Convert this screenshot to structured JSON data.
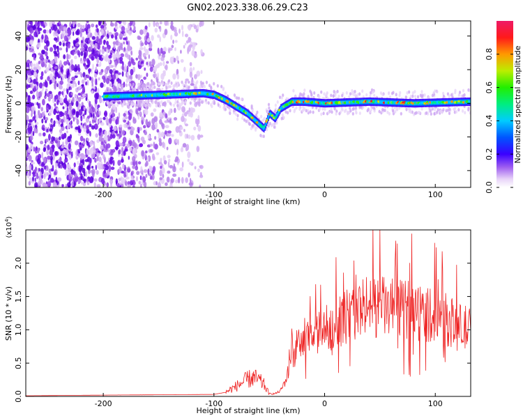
{
  "title": "GN02.2023.338.06.29.C23",
  "chart_data": [
    {
      "type": "heatmap",
      "xlabel": "Height of straight line (km)",
      "ylabel": "Frequency (Hz)",
      "xlim": [
        -270,
        132
      ],
      "ylim": [
        -50,
        49
      ],
      "xticks": [
        -200,
        -100,
        0,
        100
      ],
      "xtick_labels": [
        "-200",
        "-100",
        "0",
        "100"
      ],
      "yticks": [
        -40,
        -20,
        0,
        20,
        40
      ],
      "ytick_labels": [
        "-40",
        "-20",
        "0",
        "20",
        "40"
      ],
      "ridge": {
        "x": [
          -200,
          -150,
          -110,
          -100,
          -90,
          -80,
          -70,
          -60,
          -55,
          -50,
          -45,
          -40,
          -35,
          -30,
          -20,
          0,
          40,
          80,
          132
        ],
        "freq": [
          4,
          5,
          6,
          5,
          2,
          -2,
          -6,
          -12,
          -15,
          -6,
          -9,
          -3,
          -1,
          1,
          1,
          0,
          1,
          0,
          1
        ]
      },
      "colorbar": {
        "label": "Normalized spectral amplitude",
        "range": [
          0.0,
          1.0
        ],
        "ticks": [
          0.0,
          0.2,
          0.4,
          0.6,
          0.8
        ],
        "tick_labels": [
          "0.0",
          "0.2",
          "0.4",
          "0.6",
          "0.8"
        ]
      }
    },
    {
      "type": "line",
      "xlabel": "Height of straight line (km)",
      "ylabel": "SNR (10 * v/v)",
      "y_multiplier": "(x10",
      "y_multiplier_exp": "4",
      "y_multiplier_close": ")",
      "xlim": [
        -270,
        132
      ],
      "ylim": [
        0.0,
        2.5
      ],
      "xticks": [
        -200,
        -100,
        0,
        100
      ],
      "xtick_labels": [
        "-200",
        "-100",
        "0",
        "100"
      ],
      "yticks": [
        0.0,
        0.5,
        1.0,
        1.5,
        2.0
      ],
      "ytick_labels": [
        "0.0",
        "0.5",
        "1.0",
        "1.5",
        "2.0"
      ],
      "color": "#ee2222",
      "envelope": {
        "x": [
          -270,
          -200,
          -100,
          -90,
          -80,
          -70,
          -65,
          -60,
          -55,
          -50,
          -45,
          -40,
          -35,
          -30,
          -25,
          -20,
          -10,
          0,
          10,
          20,
          30,
          40,
          50,
          60,
          70,
          80,
          90,
          100,
          110,
          120,
          132
        ],
        "mean": [
          0.01,
          0.02,
          0.03,
          0.06,
          0.15,
          0.25,
          0.28,
          0.25,
          0.18,
          0.04,
          0.04,
          0.08,
          0.25,
          0.55,
          0.75,
          0.8,
          0.9,
          1.0,
          1.1,
          1.2,
          1.3,
          1.35,
          1.35,
          1.32,
          1.3,
          1.3,
          1.25,
          1.22,
          1.15,
          1.05,
          1.0
        ]
      }
    }
  ]
}
